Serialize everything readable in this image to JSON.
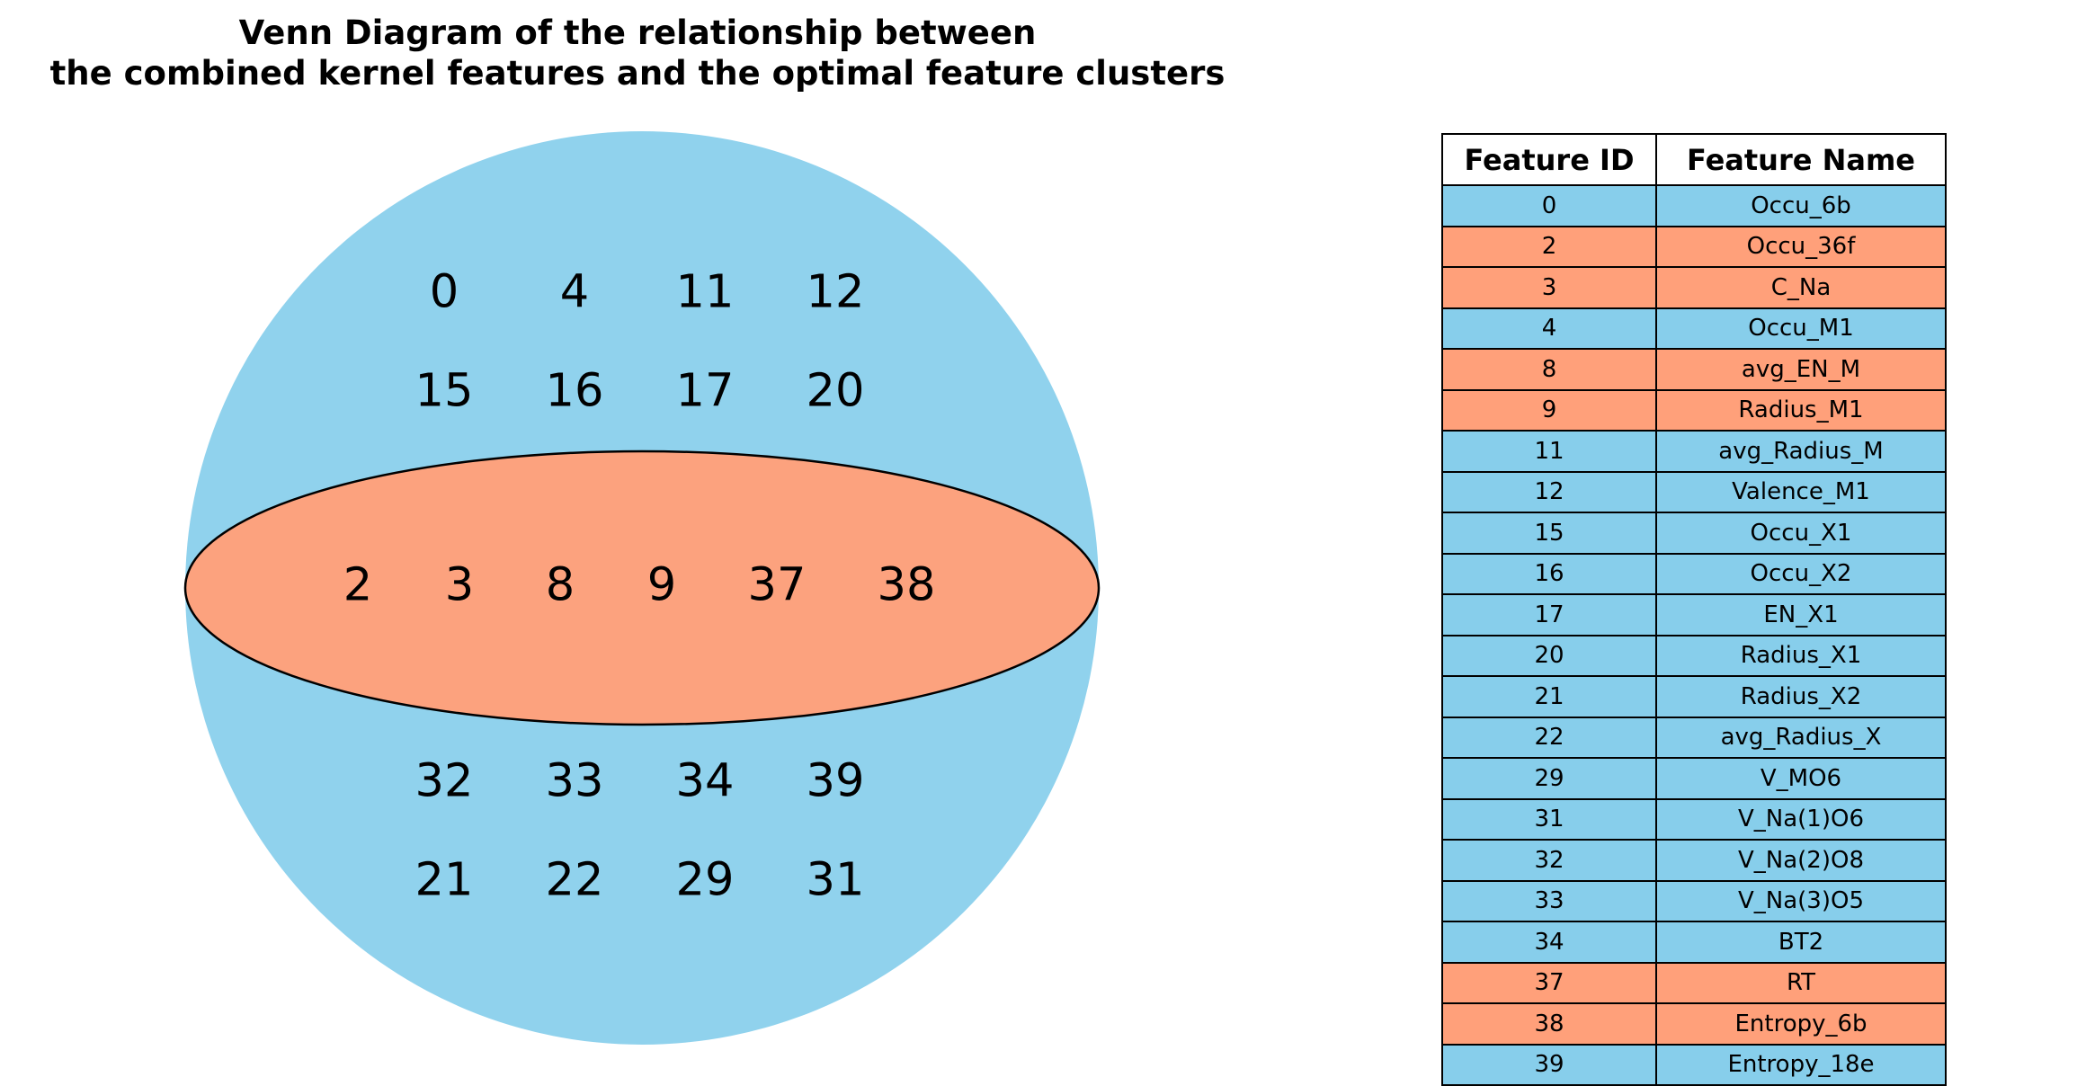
{
  "title": {
    "line1": "Venn Diagram of the relationship between",
    "line2": "the combined kernel features and the optimal feature clusters"
  },
  "colors": {
    "outer_set": "#87ceeb",
    "inner_set": "#ffa07a",
    "outline": "#000000"
  },
  "venn": {
    "outer_top_rows": [
      [
        "0",
        "4",
        "11",
        "12"
      ],
      [
        "15",
        "16",
        "17",
        "20"
      ]
    ],
    "inner_row": [
      "2",
      "3",
      "8",
      "9",
      "37",
      "38"
    ],
    "outer_bottom_rows": [
      [
        "32",
        "33",
        "34",
        "39"
      ],
      [
        "21",
        "22",
        "29",
        "31"
      ]
    ]
  },
  "table": {
    "headers": [
      "Feature ID",
      "Feature Name"
    ],
    "rows": [
      {
        "id": "0",
        "name": "Occu_6b",
        "group": "blue"
      },
      {
        "id": "2",
        "name": "Occu_36f",
        "group": "orange"
      },
      {
        "id": "3",
        "name": "C_Na",
        "group": "orange"
      },
      {
        "id": "4",
        "name": "Occu_M1",
        "group": "blue"
      },
      {
        "id": "8",
        "name": "avg_EN_M",
        "group": "orange"
      },
      {
        "id": "9",
        "name": "Radius_M1",
        "group": "orange"
      },
      {
        "id": "11",
        "name": "avg_Radius_M",
        "group": "blue"
      },
      {
        "id": "12",
        "name": "Valence_M1",
        "group": "blue"
      },
      {
        "id": "15",
        "name": "Occu_X1",
        "group": "blue"
      },
      {
        "id": "16",
        "name": "Occu_X2",
        "group": "blue"
      },
      {
        "id": "17",
        "name": "EN_X1",
        "group": "blue"
      },
      {
        "id": "20",
        "name": "Radius_X1",
        "group": "blue"
      },
      {
        "id": "21",
        "name": "Radius_X2",
        "group": "blue"
      },
      {
        "id": "22",
        "name": "avg_Radius_X",
        "group": "blue"
      },
      {
        "id": "29",
        "name": "V_MO6",
        "group": "blue"
      },
      {
        "id": "31",
        "name": "V_Na(1)O6",
        "group": "blue"
      },
      {
        "id": "32",
        "name": "V_Na(2)O8",
        "group": "blue"
      },
      {
        "id": "33",
        "name": "V_Na(3)O5",
        "group": "blue"
      },
      {
        "id": "34",
        "name": "BT2",
        "group": "blue"
      },
      {
        "id": "37",
        "name": "RT",
        "group": "orange"
      },
      {
        "id": "38",
        "name": "Entropy_6b",
        "group": "orange"
      },
      {
        "id": "39",
        "name": "Entropy_18e",
        "group": "blue"
      }
    ]
  }
}
